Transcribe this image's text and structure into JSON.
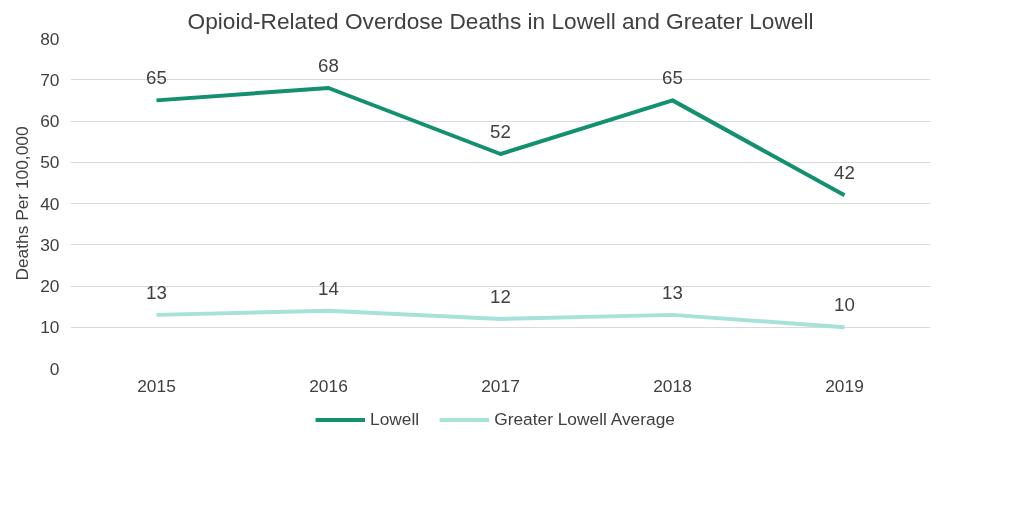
{
  "chart_data": {
    "type": "line",
    "title": "Opioid-Related Overdose Deaths in Lowell and Greater Lowell",
    "ylabel": "Deaths Per 100,000",
    "categories": [
      "2015",
      "2016",
      "2017",
      "2018",
      "2019"
    ],
    "series": [
      {
        "name": "Lowell",
        "color": "#12906f",
        "values": [
          65,
          68,
          52,
          65,
          42
        ]
      },
      {
        "name": "Greater Lowell Average",
        "color": "#a6e3d6",
        "values": [
          13,
          14,
          12,
          13,
          10
        ]
      }
    ],
    "ylim": [
      0,
      80
    ],
    "yticks": [
      0,
      10,
      20,
      30,
      40,
      50,
      60,
      70,
      80
    ],
    "grid": "y",
    "legend": "bottom",
    "data_labels": true,
    "marker": "none",
    "line_style": "solid"
  }
}
